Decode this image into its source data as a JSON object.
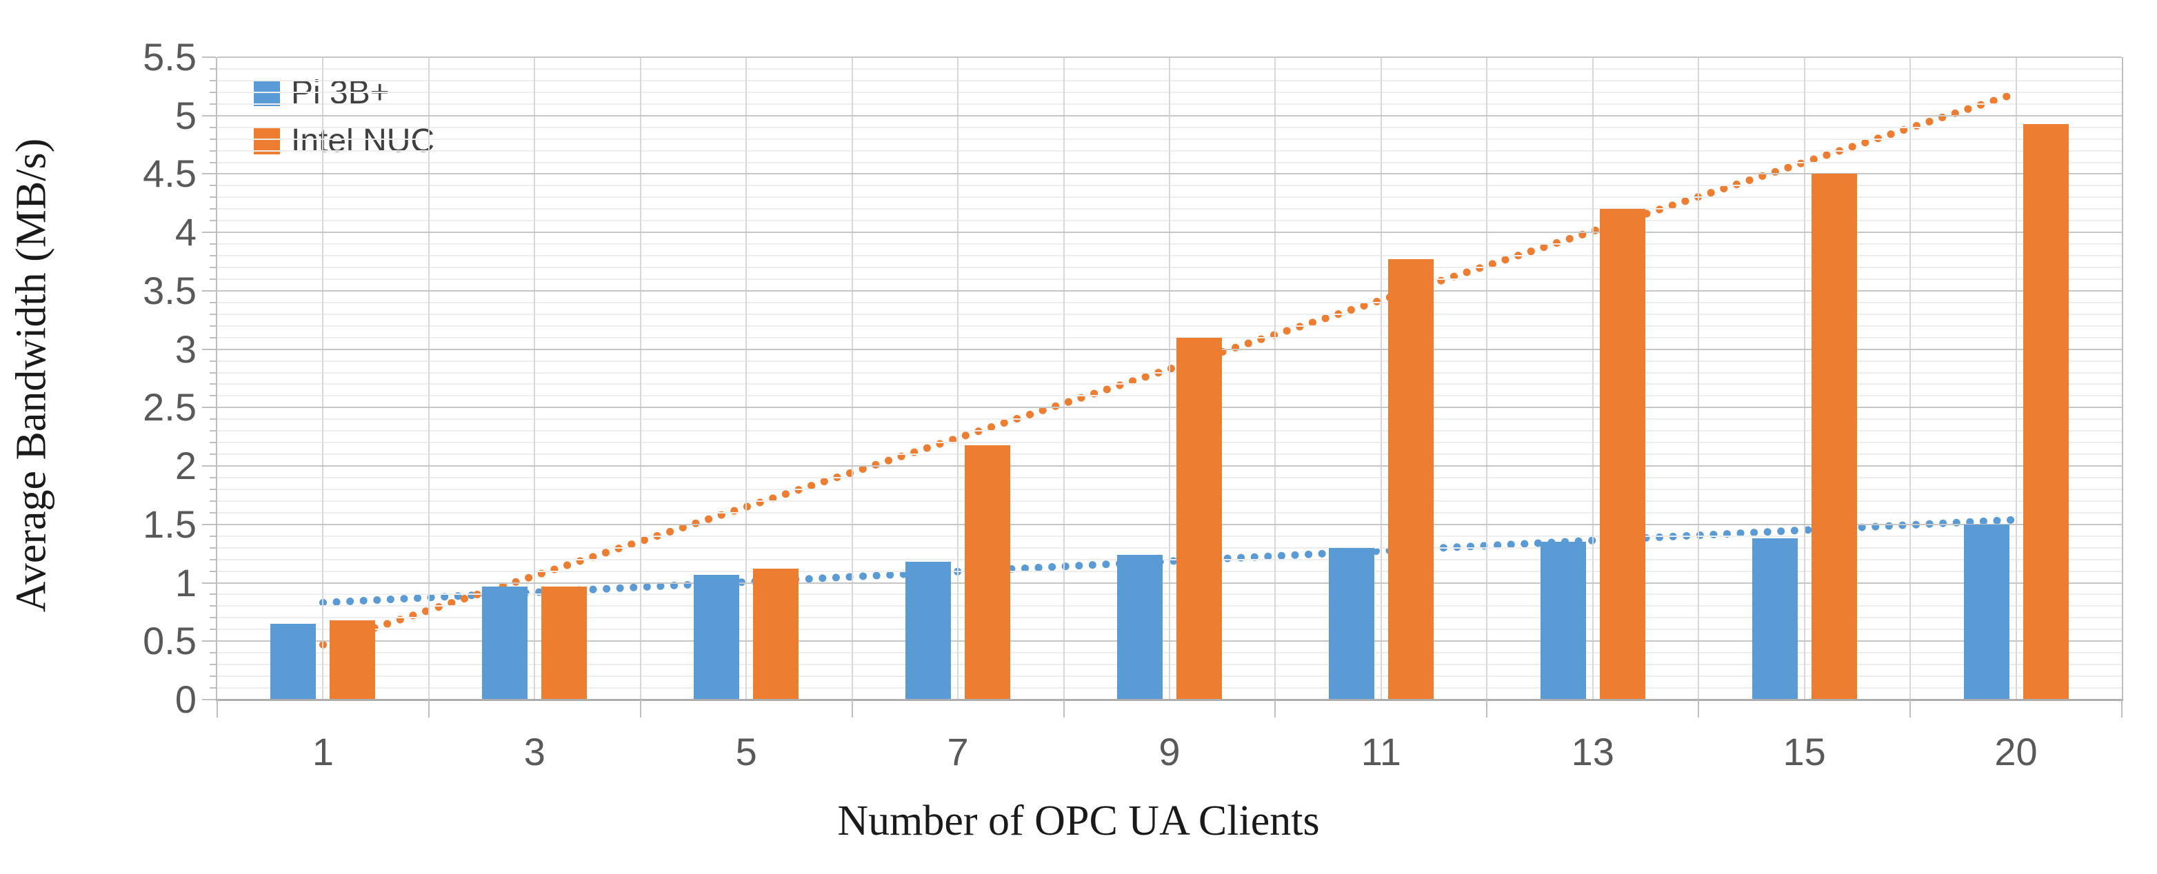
{
  "chart_data": {
    "type": "bar",
    "title": "",
    "xlabel": "Number of OPC UA Clients",
    "ylabel": "Average Bandwidth (MB/s)",
    "categories": [
      "1",
      "3",
      "5",
      "7",
      "9",
      "11",
      "13",
      "15",
      "20"
    ],
    "series": [
      {
        "name": "Pi 3B+",
        "color": "#5B9BD5",
        "values": [
          0.65,
          0.97,
          1.07,
          1.18,
          1.24,
          1.3,
          1.35,
          1.38,
          1.5
        ],
        "trendline": {
          "type": "linear",
          "style": "dotted",
          "start_value": 0.83,
          "end_value": 1.54
        }
      },
      {
        "name": "Intel NUC",
        "color": "#ED7D31",
        "values": [
          0.68,
          0.97,
          1.12,
          2.18,
          3.1,
          3.77,
          4.2,
          4.5,
          4.93
        ],
        "trendline": {
          "type": "linear",
          "style": "dotted",
          "start_value": 0.47,
          "end_value": 5.19
        }
      }
    ],
    "y_axis": {
      "min": 0,
      "max": 5.5,
      "major_step": 0.5,
      "minor_step": 0.1,
      "tick_labels": [
        "0",
        "0.5",
        "1",
        "1.5",
        "2",
        "2.5",
        "3",
        "3.5",
        "4",
        "4.5",
        "5",
        "5.5"
      ]
    },
    "legend": {
      "position": "top-left"
    },
    "grid": {
      "horizontal_major": true,
      "horizontal_minor": true,
      "vertical_half_slot": true
    },
    "style": {
      "grid_major_color": "#C6C6C6",
      "grid_minor_color": "#EDEDED",
      "grid_vertical_color": "#D8D8D8",
      "axis_color": "#BFBFBF",
      "baseline_color": "#ADADAD",
      "tick_label_color": "#595959",
      "legend_text_color": "#404040",
      "title_color": "#1a1a1a"
    }
  }
}
